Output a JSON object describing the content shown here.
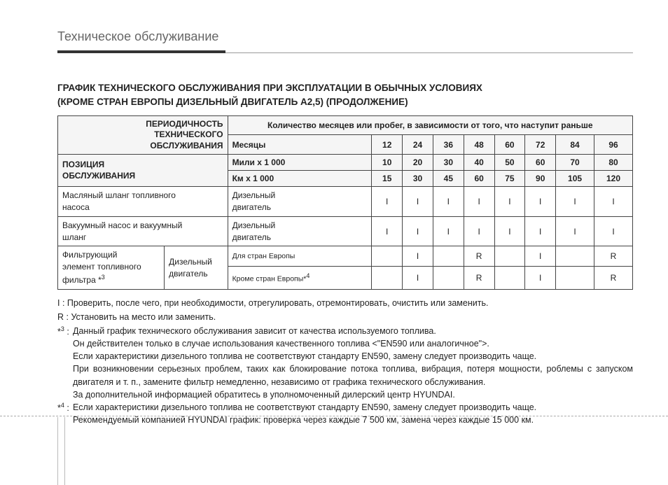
{
  "page_header": "Техническое обслуживание",
  "title_line1": "ГРАФИК ТЕХНИЧЕСКОГО ОБСЛУЖИВАНИЯ ПРИ ЭКСПЛУАТАЦИИ В ОБЫЧНЫХ УСЛОВИЯХ",
  "title_line2": "(КРОМЕ СТРАН ЕВРОПЫ ДИЗЕЛЬНЫЙ ДВИГАТЕЛЬ A2,5) (ПРОДОЛЖЕНИЕ)",
  "table": {
    "header": {
      "periodicity": "ПЕРИОДИЧНОСТЬ\nТЕХНИЧЕСКОГО\nОБСЛУЖИВАНИЯ",
      "position": "ПОЗИЦИЯ\nОБСЛУЖИВАНИЯ",
      "top": "Количество месяцев или пробег, в зависимости от того, что наступит раньше",
      "rows": [
        {
          "label": "Месяцы",
          "values": [
            "12",
            "24",
            "36",
            "48",
            "60",
            "72",
            "84",
            "96"
          ]
        },
        {
          "label": "Мили x 1 000",
          "values": [
            "10",
            "20",
            "30",
            "40",
            "50",
            "60",
            "70",
            "80"
          ]
        },
        {
          "label": "Км x 1 000",
          "values": [
            "15",
            "30",
            "45",
            "60",
            "75",
            "90",
            "105",
            "120"
          ]
        }
      ]
    },
    "rows": [
      {
        "label": "Масляный шланг топливного насоса",
        "engine": "Дизельный двигатель",
        "values": [
          "I",
          "I",
          "I",
          "I",
          "I",
          "I",
          "I",
          "I"
        ]
      },
      {
        "label": "Вакуумный насос и вакуумный шланг",
        "engine": "Дизельный двигатель",
        "values": [
          "I",
          "I",
          "I",
          "I",
          "I",
          "I",
          "I",
          "I"
        ]
      }
    ],
    "filter_block": {
      "label": "Фильтрующий элемент топливного фильтра *³",
      "engine": "Дизельный двигатель",
      "regions": [
        {
          "label": "Для стран Европы",
          "values": [
            "",
            "I",
            "",
            "R",
            "",
            "I",
            "",
            "R"
          ]
        },
        {
          "label": "Кроме стран Европы*⁴",
          "values": [
            "",
            "I",
            "",
            "R",
            "",
            "I",
            "",
            "R"
          ]
        }
      ]
    }
  },
  "legend": {
    "I": "I : Проверить, после чего, при необходимости, отрегулировать, отремонтировать, очистить или заменить.",
    "R": "R : Установить на место или заменить."
  },
  "footnotes": [
    {
      "key": "*³",
      "text": "Данный график технического обслуживания зависит от качества используемого топлива.\nОн действителен только в случае использования качественного топлива <\"EN590 или аналогичное\">.\nЕсли характеристики дизельного топлива не соответствуют стандарту EN590, замену следует производить чаще.\nПри возникновении серьезных проблем, таких как блокирование потока топлива, вибрация, потеря мощности, роблемы с запуском двигателя и т. п., замените фильтр немедленно, независимо от графика технического обслуживания.\nЗа дополнительной информацией обратитесь в уполномоченный дилерский центр HYUNDAI."
    },
    {
      "key": "*⁴",
      "text": "Если характеристики дизельного топлива не соответствуют стандарту EN590, замену следует производить чаще.\nРекомендуемый компанией HYUNDAI график: проверка через каждые 7 500 км, замена через каждые 15 000 км."
    }
  ]
}
